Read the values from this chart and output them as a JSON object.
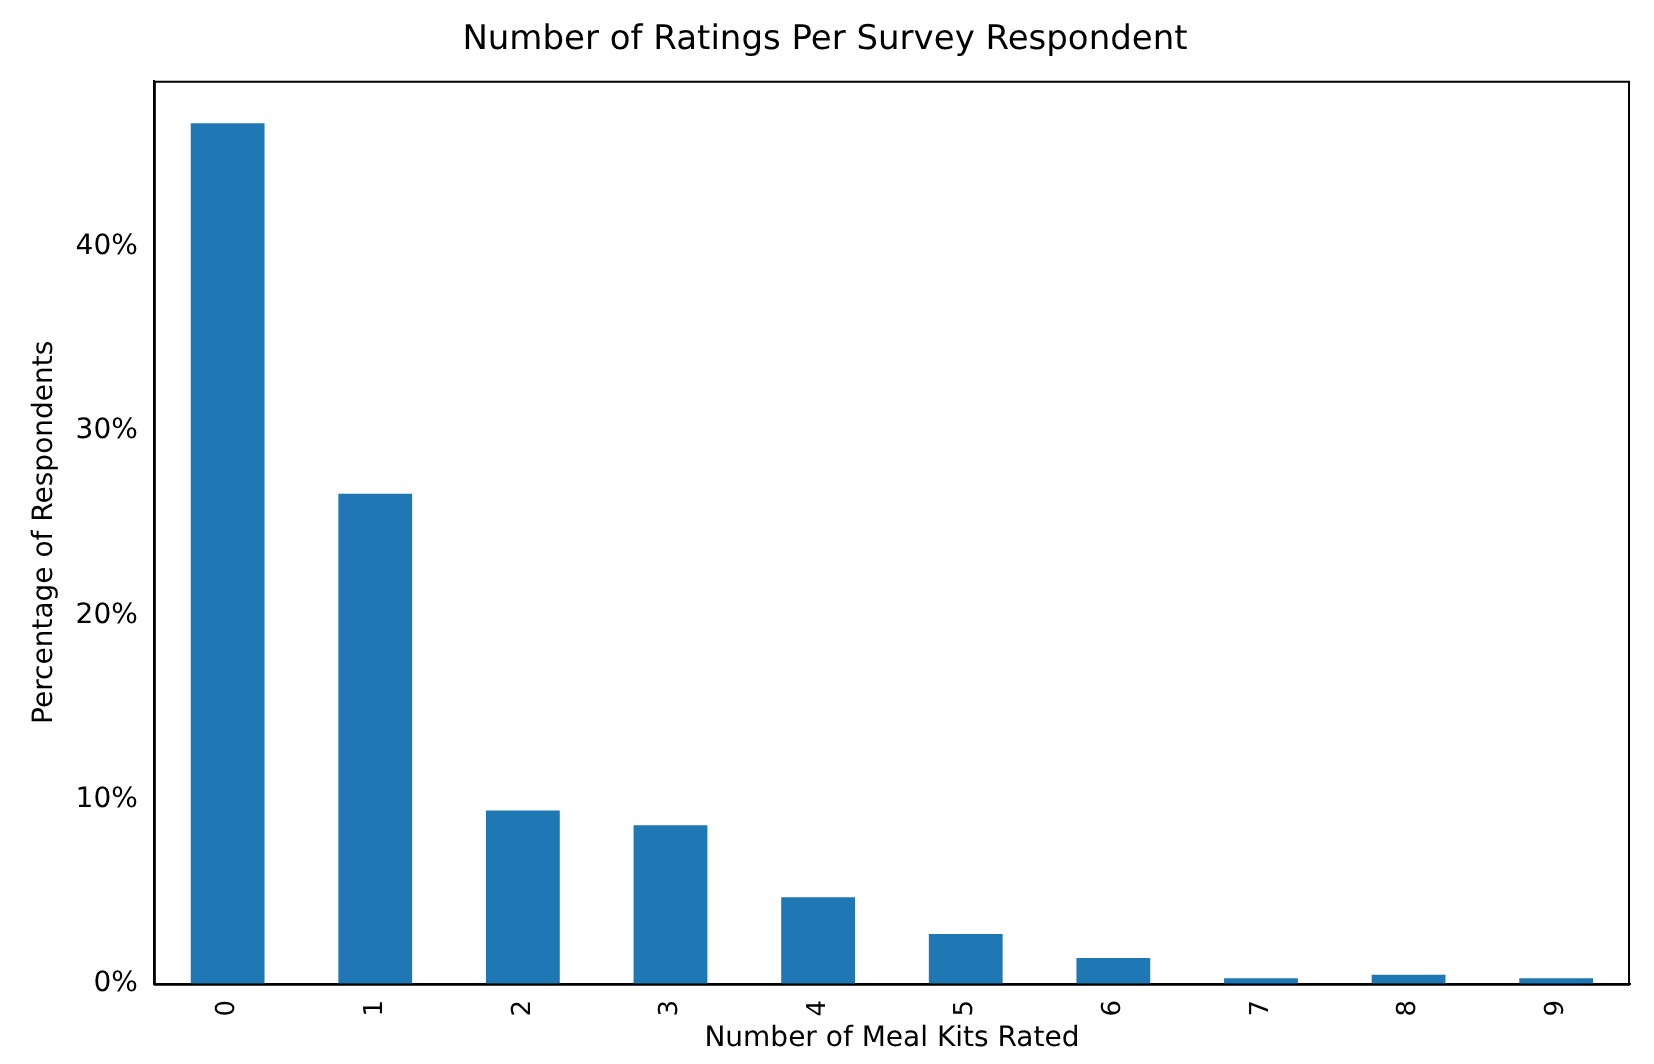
{
  "chart_data": {
    "type": "bar",
    "title": "Number of Ratings Per Survey Respondent",
    "xlabel": "Number of Meal Kits Rated",
    "ylabel": "Percentage of Respondents",
    "categories": [
      "0",
      "1",
      "2",
      "3",
      "4",
      "5",
      "6",
      "7",
      "8",
      "9"
    ],
    "values": [
      46.7,
      26.6,
      9.4,
      8.6,
      4.7,
      2.7,
      1.4,
      0.3,
      0.5,
      0.3
    ],
    "color": "#1f77b4",
    "ylim": [
      0,
      49
    ],
    "yticks": [
      {
        "value": 0,
        "label": "0%"
      },
      {
        "value": 10,
        "label": "10%"
      },
      {
        "value": 20,
        "label": "20%"
      },
      {
        "value": 30,
        "label": "30%"
      },
      {
        "value": 40,
        "label": "40%"
      }
    ],
    "grid": false,
    "legend": false
  }
}
